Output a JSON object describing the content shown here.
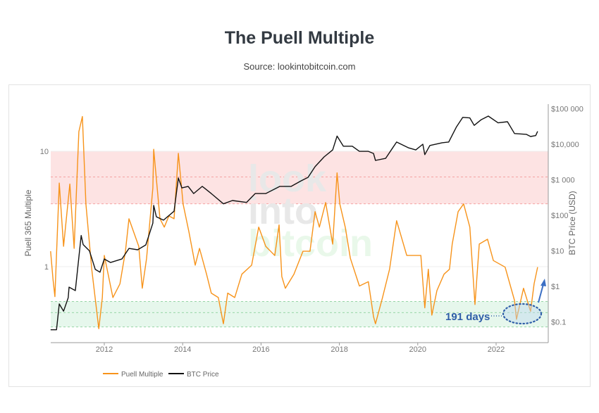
{
  "title": "The Puell Multiple",
  "subtitle": "Source: lookintobitcoin.com",
  "watermark": [
    "look",
    "into",
    "bitcoin"
  ],
  "annotation": {
    "text": "191 days",
    "color": "#2f5ea8"
  },
  "chart_data": {
    "type": "line",
    "title": "The Puell Multiple",
    "xlabel": "",
    "x_ticks": [
      "2012",
      "2014",
      "2016",
      "2018",
      "2020",
      "2022"
    ],
    "xlim": [
      2010.63,
      2023.06
    ],
    "y_left": {
      "label": "Puell 365 Multiple",
      "scale": "log",
      "ticks": [
        "10",
        "1"
      ],
      "tick_values": [
        10,
        1
      ]
    },
    "y_right": {
      "label": "BTC Price (USD)",
      "scale": "log",
      "ticks": [
        "$100 000",
        "$10,000",
        "$1 000",
        "$100",
        "$10",
        "$1",
        "$0.1"
      ],
      "tick_values": [
        100000,
        10000,
        1000,
        100,
        10,
        1,
        0.1
      ]
    },
    "grid": true,
    "legend_position": "bottom-left",
    "bands": [
      {
        "zone": "high",
        "range": [
          3.5,
          10
        ],
        "midline": 6,
        "color": "#fde3e3",
        "line_color": "#f28b8b"
      },
      {
        "zone": "low",
        "range": [
          0.3,
          0.5
        ],
        "midline": 0.4,
        "color": "#e6f7ec",
        "line_color": "#7cc98d"
      }
    ],
    "series": [
      {
        "name": "Puell Multiple",
        "axis": "left",
        "color": "#f7931a",
        "x": [
          2010.63,
          2010.69,
          2010.74,
          2010.85,
          2010.96,
          2011.12,
          2011.23,
          2011.35,
          2011.44,
          2011.53,
          2011.68,
          2011.86,
          2011.95,
          2012.0,
          2012.22,
          2012.4,
          2012.54,
          2012.63,
          2012.88,
          2012.97,
          2013.08,
          2013.24,
          2013.26,
          2013.42,
          2013.53,
          2013.65,
          2013.78,
          2013.89,
          2014.01,
          2014.16,
          2014.32,
          2014.43,
          2014.61,
          2014.73,
          2014.91,
          2015.04,
          2015.15,
          2015.33,
          2015.51,
          2015.76,
          2015.94,
          2016.12,
          2016.35,
          2016.46,
          2016.53,
          2016.62,
          2016.84,
          2017.07,
          2017.25,
          2017.38,
          2017.49,
          2017.65,
          2017.83,
          2017.94,
          2018.01,
          2018.15,
          2018.28,
          2018.51,
          2018.74,
          2018.87,
          2018.92,
          2019.1,
          2019.28,
          2019.46,
          2019.72,
          2020.08,
          2020.18,
          2020.27,
          2020.36,
          2020.49,
          2020.67,
          2020.81,
          2020.88,
          2021.03,
          2021.17,
          2021.33,
          2021.46,
          2021.57,
          2021.78,
          2021.93,
          2022.23,
          2022.47,
          2022.52,
          2022.7,
          2022.88,
          2022.97,
          2023.06
        ],
        "values": [
          1.36,
          0.78,
          0.55,
          5.3,
          1.5,
          5.2,
          1.44,
          14.8,
          20,
          3.5,
          0.95,
          0.29,
          0.54,
          1.25,
          0.54,
          0.71,
          1.36,
          2.6,
          1.5,
          0.65,
          1.18,
          4.8,
          10.4,
          2.6,
          2.2,
          2.75,
          2.6,
          9.6,
          3.5,
          2.0,
          1.03,
          1.44,
          0.86,
          0.59,
          0.54,
          0.32,
          0.59,
          0.54,
          0.86,
          1.03,
          2.2,
          1.5,
          1.25,
          2.3,
          0.82,
          0.65,
          0.86,
          1.36,
          1.36,
          3.0,
          2.2,
          3.6,
          1.57,
          6.5,
          3.5,
          2.2,
          1.18,
          0.68,
          0.74,
          0.37,
          0.32,
          0.54,
          0.95,
          2.5,
          1.25,
          1.25,
          0.44,
          0.95,
          0.38,
          0.62,
          0.86,
          0.95,
          1.57,
          3.0,
          3.5,
          2.2,
          0.47,
          1.57,
          1.73,
          1.13,
          0.99,
          0.51,
          0.35,
          0.65,
          0.41,
          0.71,
          0.99
        ]
      },
      {
        "name": "BTC Price",
        "axis": "right",
        "color": "#111111",
        "x": [
          2010.63,
          2010.78,
          2010.85,
          2010.96,
          2011.08,
          2011.1,
          2011.26,
          2011.41,
          2011.46,
          2011.62,
          2011.77,
          2011.89,
          2012.0,
          2012.16,
          2012.45,
          2012.63,
          2012.85,
          2013.06,
          2013.24,
          2013.26,
          2013.33,
          2013.51,
          2013.78,
          2013.89,
          2013.98,
          2014.14,
          2014.28,
          2014.5,
          2014.55,
          2014.73,
          2014.79,
          2015.04,
          2015.27,
          2015.63,
          2015.85,
          2016.12,
          2016.48,
          2016.77,
          2017.02,
          2017.2,
          2017.38,
          2017.61,
          2017.83,
          2017.94,
          2018.1,
          2018.33,
          2018.51,
          2018.74,
          2018.87,
          2018.92,
          2019.18,
          2019.36,
          2019.46,
          2019.77,
          2019.95,
          2020.13,
          2020.18,
          2020.31,
          2020.62,
          2020.79,
          2020.99,
          2021.15,
          2021.33,
          2021.44,
          2021.62,
          2021.8,
          2022.05,
          2022.29,
          2022.47,
          2022.77,
          2022.88,
          2023.01,
          2023.06
        ],
        "values": [
          0.06,
          0.06,
          0.32,
          0.2,
          0.48,
          0.95,
          0.76,
          27,
          15,
          10,
          3,
          2.5,
          5.9,
          4.7,
          5.9,
          11.7,
          10.7,
          14.7,
          60,
          190,
          91,
          73,
          130,
          1120,
          590,
          650,
          410,
          650,
          590,
          410,
          360,
          210,
          260,
          230,
          410,
          410,
          650,
          650,
          930,
          1170,
          2330,
          4400,
          6900,
          17000,
          8800,
          8800,
          6300,
          6300,
          5500,
          3500,
          4000,
          7900,
          11500,
          7900,
          6900,
          10000,
          5100,
          9200,
          11000,
          11500,
          31000,
          57000,
          55000,
          34000,
          49000,
          62000,
          40000,
          43000,
          20000,
          19000,
          16500,
          17500,
          23000
        ]
      }
    ]
  }
}
